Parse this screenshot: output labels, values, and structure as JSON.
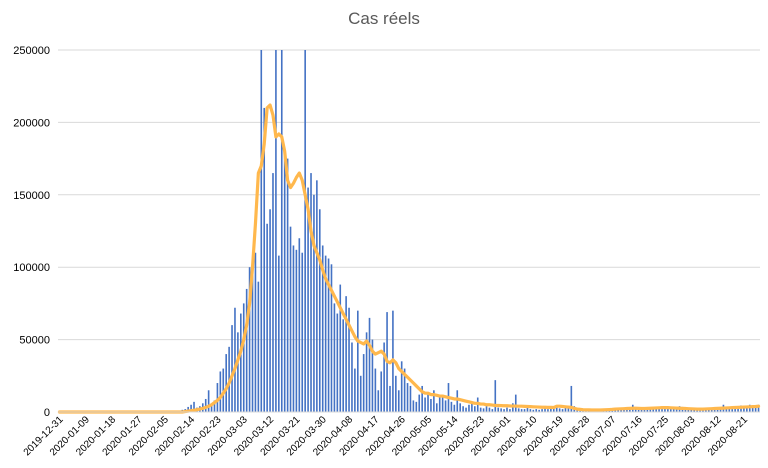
{
  "chart_data": {
    "type": "bar",
    "title": "Cas réels",
    "xlabel": "",
    "ylabel": "",
    "ylim": [
      0,
      250000
    ],
    "yticks": [
      0,
      50000,
      100000,
      150000,
      200000,
      250000
    ],
    "ytick_labels": [
      "0",
      "50000",
      "100000",
      "150000",
      "200000",
      "250000"
    ],
    "xtick_labels": [
      "2019-12-31",
      "2020-01-09",
      "2020-01-18",
      "2020-01-27",
      "2020-02-05",
      "2020-02-14",
      "2020-02-23",
      "2020-03-03",
      "2020-03-12",
      "2020-03-21",
      "2020-03-30",
      "2020-04-08",
      "2020-04-17",
      "2020-04-26",
      "2020-05-05",
      "2020-05-14",
      "2020-05-23",
      "2020-06-01",
      "2020-06-10",
      "2020-06-19",
      "2020-06-28",
      "2020-07-07",
      "2020-07-16",
      "2020-07-25",
      "2020-08-03",
      "2020-08-12",
      "2020-08-21"
    ],
    "grid": true,
    "legend": "none",
    "colors": {
      "bars": "#4472c4",
      "line": "#ffb84d",
      "grid": "#d9d9d9",
      "title": "#595959"
    },
    "series": [
      {
        "type": "bar",
        "values": [
          0,
          0,
          0,
          0,
          0,
          0,
          0,
          0,
          0,
          0,
          0,
          0,
          0,
          0,
          0,
          0,
          0,
          0,
          0,
          0,
          0,
          0,
          0,
          0,
          0,
          0,
          0,
          0,
          0,
          0,
          0,
          0,
          0,
          0,
          0,
          0,
          0,
          0,
          0,
          0,
          500,
          800,
          1500,
          2000,
          3500,
          5000,
          7000,
          3000,
          4000,
          6000,
          9000,
          15000,
          5000,
          8000,
          20000,
          28000,
          30000,
          40000,
          45000,
          60000,
          72000,
          55000,
          68000,
          75000,
          85000,
          100000,
          102000,
          110000,
          90000,
          250000,
          210000,
          130000,
          140000,
          165000,
          250000,
          108000,
          250000,
          180000,
          175000,
          128000,
          115000,
          112000,
          120000,
          110000,
          250000,
          155000,
          165000,
          150000,
          160000,
          140000,
          115000,
          108000,
          106000,
          102000,
          75000,
          68000,
          88000,
          64000,
          80000,
          72000,
          48000,
          30000,
          70000,
          25000,
          40000,
          55000,
          65000,
          50000,
          30000,
          15000,
          28000,
          48000,
          69000,
          18000,
          70000,
          25000,
          15000,
          35000,
          30000,
          20000,
          18000,
          8000,
          7000,
          12000,
          18000,
          10000,
          12000,
          9000,
          15000,
          6000,
          12000,
          10000,
          8000,
          20000,
          7000,
          5000,
          15000,
          6000,
          4000,
          3000,
          5000,
          6000,
          4000,
          10000,
          3000,
          2500,
          4000,
          3000,
          2000,
          22000,
          3000,
          2500,
          2000,
          3000,
          2000,
          6000,
          12000,
          2500,
          2000,
          2000,
          3000,
          2000,
          1500,
          2000,
          1500,
          2000,
          3000,
          2000,
          2500,
          3000,
          4000,
          2500,
          2000,
          3000,
          2500,
          18000,
          4000,
          2000,
          1500,
          1000,
          1200,
          1500,
          1000,
          800,
          1000,
          1500,
          1200,
          1000,
          800,
          1000,
          1500,
          1200,
          2000,
          1800,
          1500,
          2000,
          5000,
          1800,
          1500,
          2000,
          2500,
          2000,
          1800,
          2000,
          2500,
          3000,
          2000,
          2500,
          3000,
          2000,
          2500,
          3000,
          4000,
          3500,
          2000,
          2500,
          2000,
          3000,
          2000,
          1800,
          2000,
          1500,
          2000,
          1800,
          2500,
          3000,
          2000,
          5000,
          2500,
          3000,
          2000,
          3000,
          3000,
          4500,
          3000,
          4000,
          5000,
          3000,
          4000,
          5000
        ]
      },
      {
        "type": "line",
        "values": [
          0,
          0,
          0,
          0,
          0,
          0,
          0,
          0,
          0,
          0,
          0,
          0,
          0,
          0,
          0,
          0,
          0,
          0,
          0,
          0,
          0,
          0,
          0,
          0,
          0,
          0,
          0,
          0,
          0,
          0,
          0,
          0,
          0,
          0,
          0,
          0,
          0,
          0,
          0,
          0,
          0,
          0,
          0,
          300,
          600,
          900,
          1200,
          1600,
          2000,
          2500,
          3200,
          4000,
          5000,
          6500,
          8000,
          10000,
          13000,
          16000,
          20000,
          25000,
          30000,
          36000,
          42000,
          50000,
          60000,
          75000,
          100000,
          130000,
          165000,
          170000,
          185000,
          210000,
          212000,
          205000,
          190000,
          192000,
          190000,
          180000,
          160000,
          155000,
          158000,
          162000,
          165000,
          160000,
          150000,
          140000,
          125000,
          115000,
          110000,
          105000,
          98000,
          92000,
          88000,
          84000,
          80000,
          76000,
          72000,
          68000,
          64000,
          60000,
          56000,
          52000,
          49000,
          48000,
          47000,
          49000,
          46000,
          42000,
          40000,
          41000,
          42000,
          40000,
          35000,
          34000,
          36000,
          34000,
          30000,
          28000,
          26000,
          24000,
          22000,
          20000,
          18000,
          16000,
          14000,
          13000,
          13000,
          12000,
          12000,
          11500,
          11000,
          11000,
          10500,
          10000,
          9500,
          9000,
          9000,
          8500,
          8000,
          7500,
          7000,
          6500,
          6000,
          6000,
          5500,
          5500,
          5000,
          5000,
          4800,
          4500,
          4500,
          4400,
          4300,
          4300,
          4200,
          4100,
          4100,
          4000,
          4000,
          3900,
          3800,
          3700,
          3600,
          3500,
          3400,
          3300,
          3300,
          3200,
          3200,
          3100,
          4000,
          4000,
          3800,
          3600,
          3400,
          3200,
          2500,
          2000,
          1800,
          1600,
          1500,
          1500,
          1400,
          1400,
          1400,
          1400,
          1500,
          1600,
          1700,
          1800,
          2000,
          2100,
          2200,
          2300,
          2400,
          2500,
          2600,
          2600,
          2500,
          2400,
          2400,
          2500,
          2600,
          2700,
          2800,
          2900,
          3000,
          3000,
          3000,
          2900,
          2800,
          2700,
          2600,
          2500,
          2400,
          2300,
          2200,
          2100,
          2000,
          2000,
          2000,
          2100,
          2200,
          2300,
          2400,
          2500,
          2600,
          2700,
          2800,
          2900,
          3000,
          3100,
          3200,
          3300,
          3400,
          3500,
          3600,
          3700,
          3800,
          4000
        ]
      }
    ]
  }
}
